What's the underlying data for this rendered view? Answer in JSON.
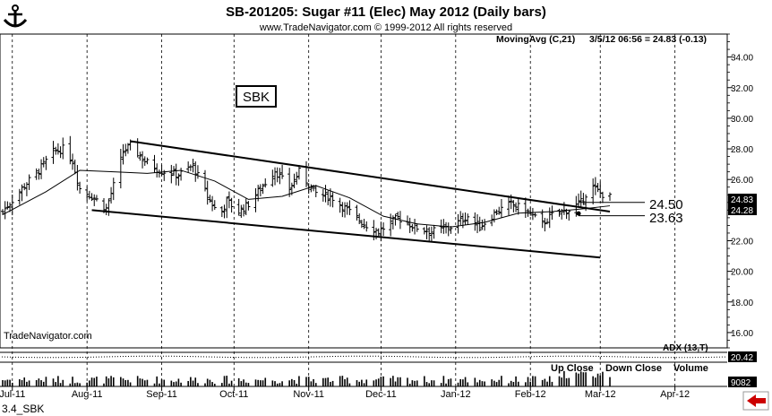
{
  "header": {
    "title": "SB-201205:  Sugar #11 (Elec) May 2012  (Daily bars)",
    "subtitle": "www.TradeNavigator.com © 1999-2012 All rights reserved",
    "ma_label": "MovingAvg (C,21)",
    "ma_info": "3/5/12 06:56 = 24.83 (-0.13)"
  },
  "annotations": {
    "box_label": "SBK",
    "level_high": "24.50",
    "level_low": "23.63",
    "watermark": "TradeNavigator.com",
    "adx_label": "ADX (13,T)",
    "legend_up": "Up Close",
    "legend_down": "Down Close",
    "legend_volume": "Volume",
    "footer": "3.4_SBK"
  },
  "price_tags": {
    "last": "24.83",
    "ma": "24.28",
    "adx": "20.42",
    "volume": "9082"
  },
  "colors": {
    "price_tag_bg": "#000000",
    "price_tag_text": "#ffffff",
    "grid": "#000000",
    "nav_arrow": "#cc0000"
  },
  "chart_data": {
    "type": "bar",
    "title": "SB-201205:  Sugar #11 (Elec) May 2012  (Daily bars)",
    "x_ticks": [
      "Jul-11",
      "Aug-11",
      "Sep-11",
      "Oct-11",
      "Nov-11",
      "Dec-11",
      "Jan-12",
      "Feb-12",
      "Mar-12",
      "Apr-12"
    ],
    "y_ticks": [
      "16.00",
      "18.00",
      "20.00",
      "22.00",
      "24.00",
      "26.00",
      "28.00",
      "30.00",
      "32.00",
      "34.00"
    ],
    "ylim": [
      15.0,
      35.5
    ],
    "price_path": [
      {
        "date": "2011-06-27",
        "close": 23.9
      },
      {
        "date": "2011-07-06",
        "close": 25.6
      },
      {
        "date": "2011-07-12",
        "close": 26.6
      },
      {
        "date": "2011-07-18",
        "close": 27.8
      },
      {
        "date": "2011-07-22",
        "close": 28.0
      },
      {
        "date": "2011-07-26",
        "close": 27.2
      },
      {
        "date": "2011-07-29",
        "close": 25.4
      },
      {
        "date": "2011-08-04",
        "close": 24.8
      },
      {
        "date": "2011-08-09",
        "close": 24.1
      },
      {
        "date": "2011-08-12",
        "close": 25.6
      },
      {
        "date": "2011-08-16",
        "close": 27.8
      },
      {
        "date": "2011-08-19",
        "close": 28.2
      },
      {
        "date": "2011-08-25",
        "close": 27.2
      },
      {
        "date": "2011-08-31",
        "close": 26.6
      },
      {
        "date": "2011-09-08",
        "close": 26.3
      },
      {
        "date": "2011-09-14",
        "close": 26.9
      },
      {
        "date": "2011-09-20",
        "close": 24.9
      },
      {
        "date": "2011-09-25",
        "close": 23.6
      },
      {
        "date": "2011-09-28",
        "close": 24.6
      },
      {
        "date": "2011-10-03",
        "close": 23.9
      },
      {
        "date": "2011-10-07",
        "close": 24.4
      },
      {
        "date": "2011-10-14",
        "close": 25.8
      },
      {
        "date": "2011-10-18",
        "close": 26.6
      },
      {
        "date": "2011-10-24",
        "close": 25.4
      },
      {
        "date": "2011-10-28",
        "close": 26.5
      },
      {
        "date": "2011-11-04",
        "close": 25.1
      },
      {
        "date": "2011-11-11",
        "close": 24.8
      },
      {
        "date": "2011-11-17",
        "close": 24.0
      },
      {
        "date": "2011-11-24",
        "close": 23.1
      },
      {
        "date": "2011-11-30",
        "close": 22.6
      },
      {
        "date": "2011-12-08",
        "close": 23.5
      },
      {
        "date": "2011-12-15",
        "close": 22.9
      },
      {
        "date": "2011-12-22",
        "close": 22.6
      },
      {
        "date": "2011-12-30",
        "close": 22.9
      },
      {
        "date": "2012-01-06",
        "close": 23.6
      },
      {
        "date": "2012-01-11",
        "close": 22.9
      },
      {
        "date": "2012-01-18",
        "close": 23.9
      },
      {
        "date": "2012-01-24",
        "close": 24.4
      },
      {
        "date": "2012-01-30",
        "close": 24.0
      },
      {
        "date": "2012-02-06",
        "close": 23.1
      },
      {
        "date": "2012-02-11",
        "close": 23.8
      },
      {
        "date": "2012-02-17",
        "close": 24.0
      },
      {
        "date": "2012-02-22",
        "close": 24.5
      },
      {
        "date": "2012-02-26",
        "close": 25.6
      },
      {
        "date": "2012-03-01",
        "close": 25.1
      },
      {
        "date": "2012-03-05",
        "close": 24.83
      }
    ],
    "moving_average": [
      {
        "date": "2011-06-27",
        "value": 23.7
      },
      {
        "date": "2011-07-15",
        "value": 25.2
      },
      {
        "date": "2011-07-29",
        "value": 26.6
      },
      {
        "date": "2011-08-12",
        "value": 26.5
      },
      {
        "date": "2011-08-26",
        "value": 26.4
      },
      {
        "date": "2011-09-09",
        "value": 26.6
      },
      {
        "date": "2011-09-23",
        "value": 25.9
      },
      {
        "date": "2011-10-07",
        "value": 24.7
      },
      {
        "date": "2011-10-21",
        "value": 24.9
      },
      {
        "date": "2011-11-04",
        "value": 25.6
      },
      {
        "date": "2011-11-18",
        "value": 24.8
      },
      {
        "date": "2011-12-02",
        "value": 23.6
      },
      {
        "date": "2011-12-16",
        "value": 23.1
      },
      {
        "date": "2011-12-30",
        "value": 22.9
      },
      {
        "date": "2012-01-13",
        "value": 23.2
      },
      {
        "date": "2012-01-27",
        "value": 23.8
      },
      {
        "date": "2012-02-10",
        "value": 23.9
      },
      {
        "date": "2012-02-24",
        "value": 24.1
      },
      {
        "date": "2012-03-05",
        "value": 24.28
      }
    ],
    "trendlines": [
      {
        "from": {
          "date": "2011-08-19",
          "value": 28.5
        },
        "to": {
          "date": "2012-03-05",
          "value": 23.9
        }
      },
      {
        "from": {
          "date": "2011-08-03",
          "value": 24.0
        },
        "to": {
          "date": "2012-03-01",
          "value": 20.9
        }
      }
    ],
    "levels": [
      24.5,
      23.63
    ]
  }
}
